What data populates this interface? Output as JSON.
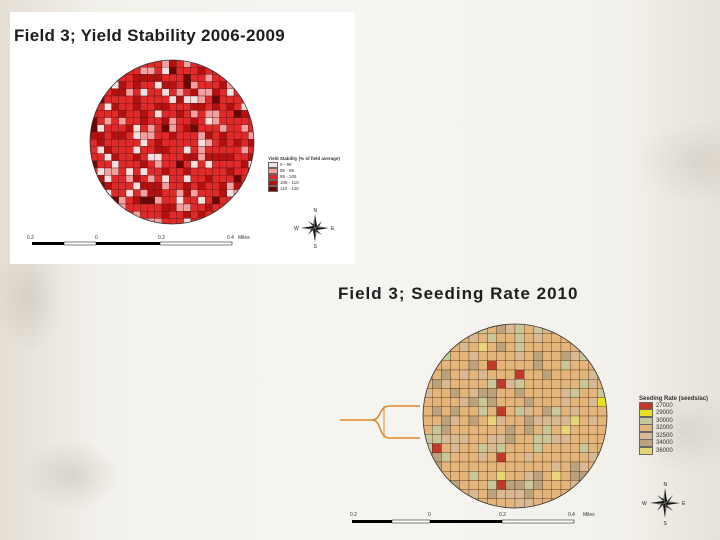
{
  "map1": {
    "title": "Field 3; Yield Stability 2006-2009",
    "legend_title": "Yield Stability (% of field average)",
    "legend": [
      {
        "label": "0 - 90",
        "color": "#f6e0e0"
      },
      {
        "label": "90 - 95",
        "color": "#f2a0a0"
      },
      {
        "label": "95 - 105",
        "color": "#e02a2a"
      },
      {
        "label": "105 - 110",
        "color": "#b51010"
      },
      {
        "label": "110 - 140",
        "color": "#6a0808"
      }
    ],
    "scale": {
      "labels": [
        "0.2",
        "0",
        "0.2",
        "0.4"
      ],
      "unit": "Miles"
    }
  },
  "map2": {
    "title": "Field 3; Seeding Rate 2010",
    "legend_title": "Seeding Rate (seeds/ac)",
    "legend": [
      {
        "label": "27000",
        "color": "#c0392b"
      },
      {
        "label": "29000",
        "color": "#e8e020"
      },
      {
        "label": "30000",
        "color": "#c7c79a"
      },
      {
        "label": "32000",
        "color": "#e3b57a"
      },
      {
        "label": "32500",
        "color": "#d9b993"
      },
      {
        "label": "34000",
        "color": "#b9a27c"
      },
      {
        "label": "36000",
        "color": "#e6d67a"
      }
    ],
    "scale": {
      "labels": [
        "0.2",
        "0",
        "0.2",
        "0.4"
      ],
      "unit": "Miles"
    }
  },
  "compass": {
    "n": "N",
    "s": "S",
    "e": "E",
    "w": "W"
  },
  "colors": {
    "callout": "#e08a2a",
    "grid": "#222222"
  }
}
